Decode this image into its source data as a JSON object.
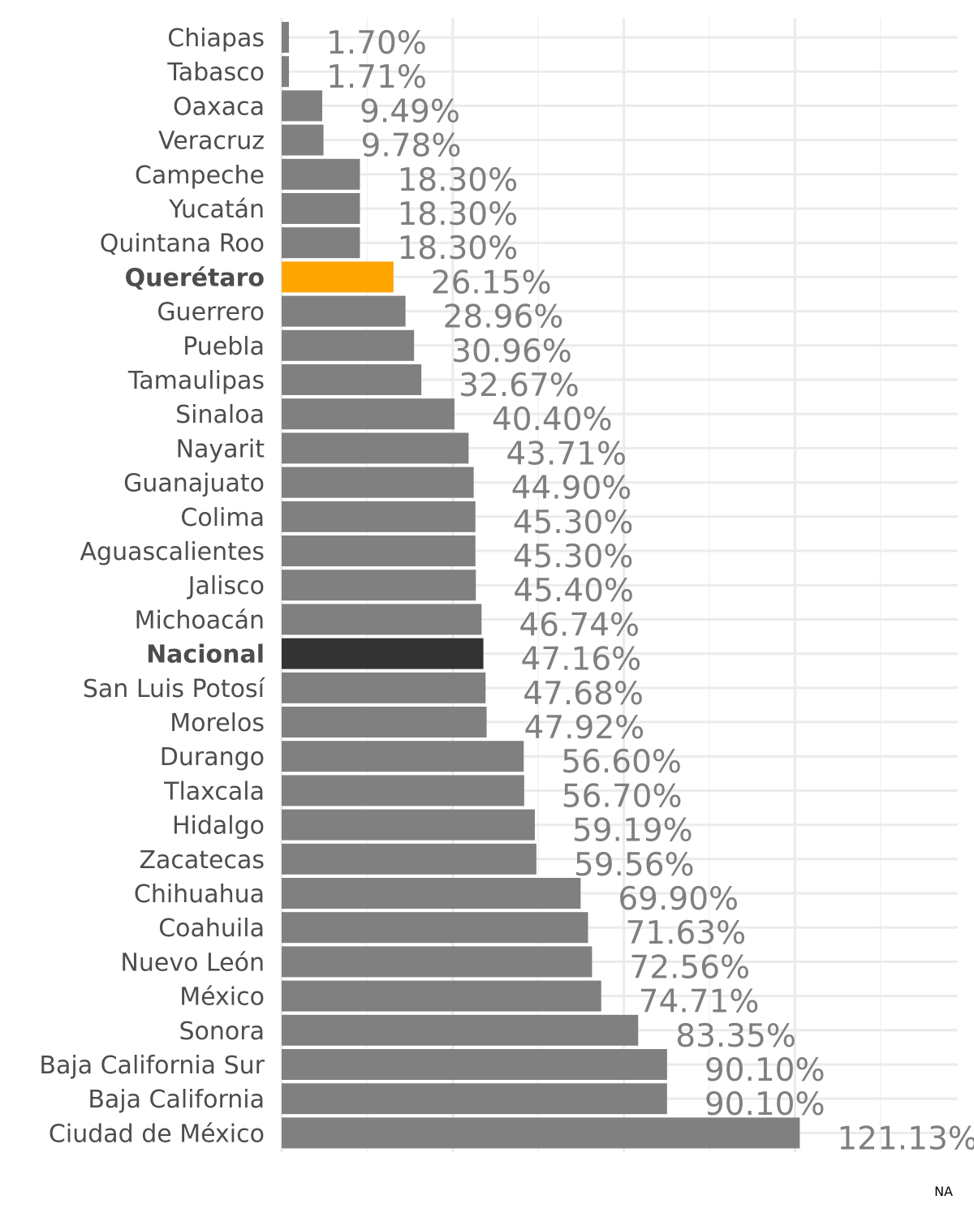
{
  "chart_data": {
    "type": "bar",
    "orientation": "horizontal",
    "title": "",
    "xlabel": "",
    "ylabel": "",
    "x_tick_labels_shown": false,
    "xlim": [
      0,
      130
    ],
    "grid": true,
    "footer_text": "NA",
    "categories": [
      "Chiapas",
      "Tabasco",
      "Oaxaca",
      "Veracruz",
      "Campeche",
      "Yucatán",
      "Quintana Roo",
      "Querétaro",
      "Guerrero",
      "Puebla",
      "Tamaulipas",
      "Sinaloa",
      "Nayarit",
      "Guanajuato",
      "Colima",
      "Aguascalientes",
      "Jalisco",
      "Michoacán",
      "Nacional",
      "San Luis Potosí",
      "Morelos",
      "Durango",
      "Tlaxcala",
      "Hidalgo",
      "Zacatecas",
      "Chihuahua",
      "Coahuila",
      "Nuevo León",
      "México",
      "Sonora",
      "Baja California Sur",
      "Baja California",
      "Ciudad de México"
    ],
    "values": [
      1.7,
      1.71,
      9.49,
      9.78,
      18.3,
      18.3,
      18.3,
      26.15,
      28.96,
      30.96,
      32.67,
      40.4,
      43.71,
      44.9,
      45.3,
      45.3,
      45.4,
      46.74,
      47.16,
      47.68,
      47.92,
      56.6,
      56.7,
      59.19,
      59.56,
      69.9,
      71.63,
      72.56,
      74.71,
      83.35,
      90.1,
      90.1,
      121.13
    ],
    "value_labels": [
      "1.70%",
      "1.71%",
      "9.49%",
      "9.78%",
      "18.30%",
      "18.30%",
      "18.30%",
      "26.15%",
      "28.96%",
      "30.96%",
      "32.67%",
      "40.40%",
      "43.71%",
      "44.90%",
      "45.30%",
      "45.30%",
      "45.40%",
      "46.74%",
      "47.16%",
      "47.68%",
      "47.92%",
      "56.60%",
      "56.70%",
      "59.19%",
      "59.56%",
      "69.90%",
      "71.63%",
      "72.56%",
      "74.71%",
      "83.35%",
      "90.10%",
      "90.10%",
      "121.13%"
    ],
    "colors": {
      "default_bar": "#808080",
      "default_label": "#7f7f7f",
      "category_text": "#4d4d4d",
      "highlight": "#FFA500",
      "national_bar": "#333333",
      "national_text": "#000000"
    },
    "highlight_category": "Querétaro",
    "national_category": "Nacional"
  }
}
